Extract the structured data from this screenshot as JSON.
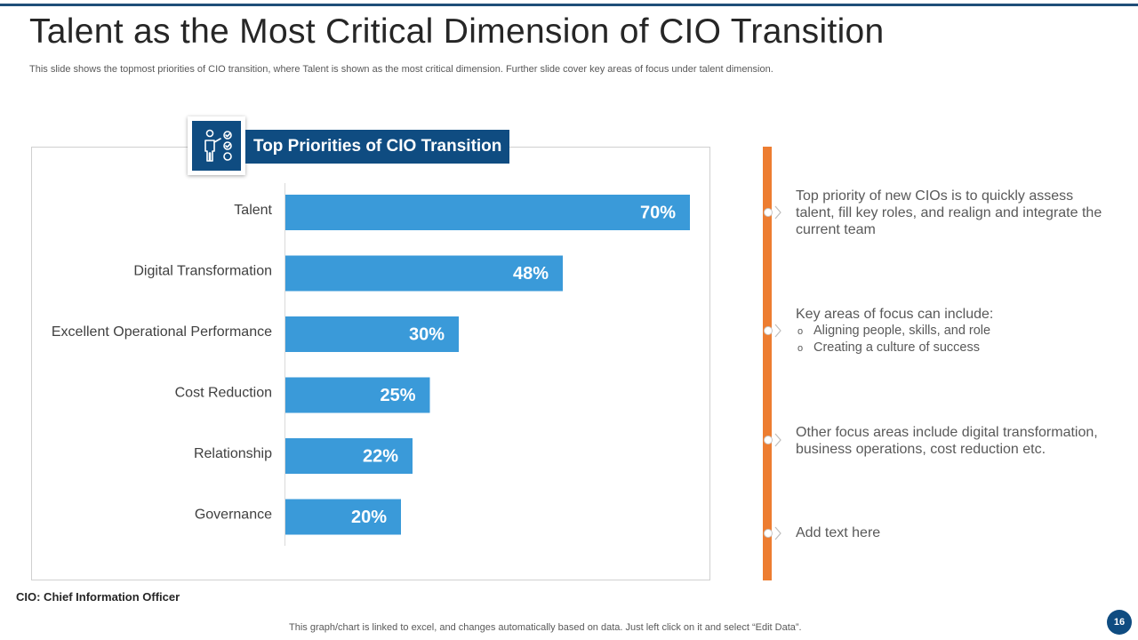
{
  "page": {
    "title": "Talent as the Most Critical Dimension of CIO Transition",
    "subtitle": "This slide shows the topmost priorities of CIO transition, where Talent is shown as the most critical dimension. Further slide cover key areas of focus under talent dimension.",
    "footnote": "CIO: Chief Information Officer",
    "bottom_note": "This graph/chart is linked to excel,  and changes automatically based on data. Just left click on it and select “Edit Data”.",
    "page_number": "16"
  },
  "colors": {
    "accent": "#0f4c81",
    "bar": "#3a9ad9",
    "timeline": "#ed7d31"
  },
  "chart_header": {
    "icon": "presenter-checklist-icon",
    "title": "Top Priorities of CIO Transition"
  },
  "chart_data": {
    "type": "bar",
    "orientation": "horizontal",
    "title": "Top Priorities of CIO Transition",
    "categories": [
      "Talent",
      "Digital Transformation",
      "Excellent Operational Performance",
      "Cost Reduction",
      "Relationship",
      "Governance"
    ],
    "values": [
      70,
      48,
      30,
      25,
      22,
      20
    ],
    "data_labels": [
      "70%",
      "48%",
      "30%",
      "25%",
      "22%",
      "20%"
    ],
    "unit": "%",
    "xlim": [
      0,
      70
    ],
    "xlabel": "",
    "ylabel": "",
    "grid": false
  },
  "notes": [
    {
      "text": "Top priority of new CIOs is to quickly assess talent, fill key roles, and realign and integrate the current team"
    },
    {
      "text": "Key areas of focus can include:",
      "bullets": [
        "Aligning people, skills, and role",
        "Creating a culture of success"
      ],
      "bullet_symbol": "o"
    },
    {
      "text": "Other focus areas include digital transformation, business operations, cost reduction etc."
    },
    {
      "text": "Add text here"
    }
  ]
}
